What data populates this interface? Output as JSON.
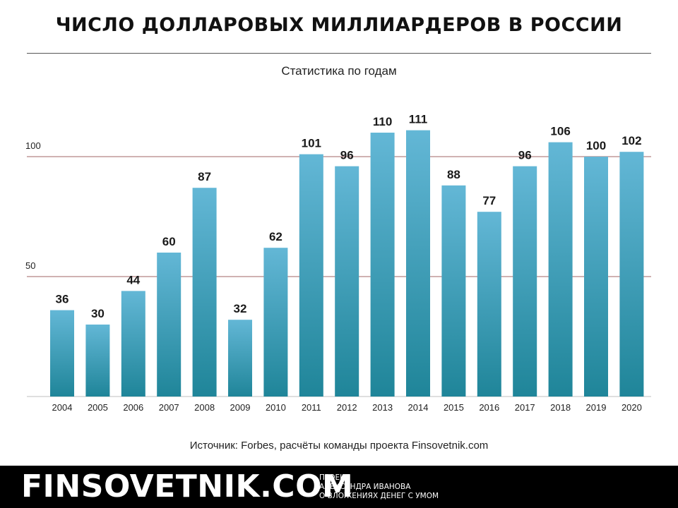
{
  "header": {
    "title": "ЧИСЛО ДОЛЛАРОВЫХ МИЛЛИАРДЕРОВ В РОССИИ",
    "subtitle": "Статистика по годам"
  },
  "chart_data": {
    "type": "bar",
    "title": "ЧИСЛО ДОЛЛАРОВЫХ МИЛЛИАРДЕРОВ В РОССИИ",
    "subtitle": "Статистика по годам",
    "categories": [
      "2004",
      "2005",
      "2006",
      "2007",
      "2008",
      "2009",
      "2010",
      "2011",
      "2012",
      "2013",
      "2014",
      "2015",
      "2016",
      "2017",
      "2018",
      "2019",
      "2020"
    ],
    "values": [
      36,
      30,
      44,
      60,
      87,
      32,
      62,
      101,
      96,
      110,
      111,
      88,
      77,
      96,
      106,
      100,
      102
    ],
    "yticks": [
      50,
      100
    ],
    "ylim": [
      0,
      120
    ],
    "grid": true,
    "data_labels": true,
    "bar_color_top": "#63b7d6",
    "bar_color_bottom": "#1f8599",
    "gridline_color": "#b58484"
  },
  "source": "Источник: Forbes, расчёты команды проекта Finsovetnik.com",
  "footer": {
    "brand": "FINSOVETNIK.COM",
    "tagline_lines": [
      "ПРОЕКТ",
      "АЛЕКСАНДРА ИВАНОВА",
      "О ВЛОЖЕНИЯХ ДЕНЕГ С УМОМ"
    ]
  }
}
